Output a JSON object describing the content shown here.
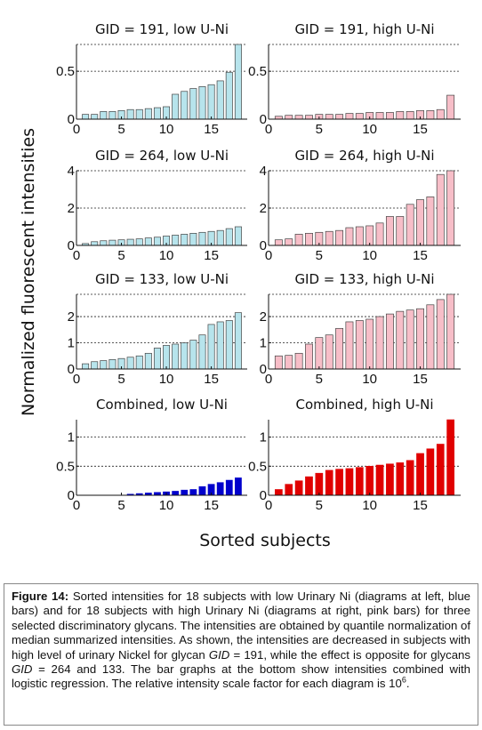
{
  "figure": {
    "ylabel": "Normalized fluorescent intensities",
    "xlabel": "Sorted subjects"
  },
  "colors": {
    "low_panel_bar": "#b7e4ec",
    "high_panel_bar": "#f7bec8",
    "combined_low_bar": "#0000cc",
    "combined_high_bar": "#e00000",
    "bar_edge": "#444444"
  },
  "chart_data": [
    {
      "type": "bar",
      "title": "GID = 191, low U-Ni",
      "x": [
        1,
        2,
        3,
        4,
        5,
        6,
        7,
        8,
        9,
        10,
        11,
        12,
        13,
        14,
        15,
        16,
        17,
        18
      ],
      "values": [
        0.05,
        0.05,
        0.08,
        0.08,
        0.09,
        0.1,
        0.1,
        0.11,
        0.12,
        0.13,
        0.26,
        0.29,
        0.32,
        0.34,
        0.36,
        0.4,
        0.49,
        0.78
      ],
      "xlim": [
        0,
        19
      ],
      "ylim": [
        0,
        0.78
      ],
      "xticks": [
        "0",
        "5",
        "10",
        "15"
      ],
      "yticks": [
        "0",
        "0.5"
      ],
      "ytick_values": [
        0,
        0.5
      ],
      "grid_y": [
        0.5
      ],
      "grid_top": true
    },
    {
      "type": "bar",
      "title": "GID = 191, high U-Ni",
      "x": [
        1,
        2,
        3,
        4,
        5,
        6,
        7,
        8,
        9,
        10,
        11,
        12,
        13,
        14,
        15,
        16,
        17,
        18
      ],
      "values": [
        0.03,
        0.04,
        0.04,
        0.04,
        0.05,
        0.05,
        0.05,
        0.06,
        0.06,
        0.07,
        0.07,
        0.07,
        0.08,
        0.08,
        0.09,
        0.09,
        0.1,
        0.25
      ],
      "xlim": [
        0,
        19
      ],
      "ylim": [
        0,
        0.78
      ],
      "xticks": [
        "0",
        "5",
        "10",
        "15"
      ],
      "yticks": [
        "0",
        "0.5"
      ],
      "ytick_values": [
        0,
        0.5
      ],
      "grid_y": [
        0.5
      ],
      "grid_top": true
    },
    {
      "type": "bar",
      "title": "GID = 264, low U-Ni",
      "x": [
        1,
        2,
        3,
        4,
        5,
        6,
        7,
        8,
        9,
        10,
        11,
        12,
        13,
        14,
        15,
        16,
        17,
        18
      ],
      "values": [
        0.1,
        0.2,
        0.25,
        0.28,
        0.3,
        0.33,
        0.35,
        0.4,
        0.44,
        0.5,
        0.55,
        0.6,
        0.65,
        0.7,
        0.75,
        0.8,
        0.9,
        1.0
      ],
      "xlim": [
        0,
        19
      ],
      "ylim": [
        0,
        4
      ],
      "xticks": [
        "0",
        "5",
        "10",
        "15"
      ],
      "yticks": [
        "0",
        "2",
        "4"
      ],
      "ytick_values": [
        0,
        2,
        4
      ],
      "grid_y": [
        2
      ],
      "grid_top": true
    },
    {
      "type": "bar",
      "title": "GID = 264, high U-Ni",
      "x": [
        1,
        2,
        3,
        4,
        5,
        6,
        7,
        8,
        9,
        10,
        11,
        12,
        13,
        14,
        15,
        16,
        17,
        18
      ],
      "values": [
        0.3,
        0.35,
        0.6,
        0.65,
        0.7,
        0.75,
        0.8,
        0.95,
        1.0,
        1.05,
        1.2,
        1.55,
        1.55,
        2.2,
        2.45,
        2.6,
        3.8,
        4.0
      ],
      "xlim": [
        0,
        19
      ],
      "ylim": [
        0,
        4
      ],
      "xticks": [
        "0",
        "5",
        "10",
        "15"
      ],
      "yticks": [
        "0",
        "2",
        "4"
      ],
      "ytick_values": [
        0,
        2,
        4
      ],
      "grid_y": [
        2
      ],
      "grid_top": true
    },
    {
      "type": "bar",
      "title": "GID = 133, low U-Ni",
      "x": [
        1,
        2,
        3,
        4,
        5,
        6,
        7,
        8,
        9,
        10,
        11,
        12,
        13,
        14,
        15,
        16,
        17,
        18
      ],
      "values": [
        0.2,
        0.28,
        0.32,
        0.36,
        0.4,
        0.45,
        0.5,
        0.6,
        0.8,
        0.9,
        0.95,
        1.0,
        1.1,
        1.3,
        1.7,
        1.8,
        1.85,
        2.15
      ],
      "xlim": [
        0,
        19
      ],
      "ylim": [
        0,
        2.85
      ],
      "xticks": [
        "0",
        "5",
        "10",
        "15"
      ],
      "yticks": [
        "0",
        "1",
        "2"
      ],
      "ytick_values": [
        0,
        1,
        2
      ],
      "grid_y": [
        1,
        2
      ],
      "grid_top": true
    },
    {
      "type": "bar",
      "title": "GID = 133, high U-Ni",
      "x": [
        1,
        2,
        3,
        4,
        5,
        6,
        7,
        8,
        9,
        10,
        11,
        12,
        13,
        14,
        15,
        16,
        17,
        18
      ],
      "values": [
        0.5,
        0.52,
        0.6,
        0.95,
        1.2,
        1.3,
        1.55,
        1.8,
        1.85,
        1.9,
        2.0,
        2.1,
        2.2,
        2.25,
        2.3,
        2.45,
        2.65,
        2.85
      ],
      "xlim": [
        0,
        19
      ],
      "ylim": [
        0,
        2.85
      ],
      "xticks": [
        "0",
        "5",
        "10",
        "15"
      ],
      "yticks": [
        "0",
        "1",
        "2"
      ],
      "ytick_values": [
        0,
        1,
        2
      ],
      "grid_y": [
        1,
        2
      ],
      "grid_top": true
    },
    {
      "type": "bar",
      "title": "Combined, low U-Ni",
      "x": [
        1,
        2,
        3,
        4,
        5,
        6,
        7,
        8,
        9,
        10,
        11,
        12,
        13,
        14,
        15,
        16,
        17,
        18
      ],
      "values": [
        0,
        0,
        0,
        0,
        0,
        0.02,
        0.03,
        0.04,
        0.05,
        0.06,
        0.07,
        0.09,
        0.1,
        0.15,
        0.19,
        0.22,
        0.26,
        0.3
      ],
      "xlim": [
        0,
        19
      ],
      "ylim": [
        0,
        1.3
      ],
      "xticks": [
        "0",
        "5",
        "10",
        "15"
      ],
      "yticks": [
        "0",
        "0.5",
        "1"
      ],
      "ytick_values": [
        0,
        0.5,
        1
      ],
      "grid_y": [
        0.5,
        1
      ],
      "grid_top": false
    },
    {
      "type": "bar",
      "title": "Combined, high U-Ni",
      "x": [
        1,
        2,
        3,
        4,
        5,
        6,
        7,
        8,
        9,
        10,
        11,
        12,
        13,
        14,
        15,
        16,
        17,
        18
      ],
      "values": [
        0.1,
        0.19,
        0.25,
        0.32,
        0.38,
        0.43,
        0.45,
        0.46,
        0.48,
        0.5,
        0.52,
        0.54,
        0.56,
        0.6,
        0.72,
        0.8,
        0.88,
        1.3
      ],
      "xlim": [
        0,
        19
      ],
      "ylim": [
        0,
        1.3
      ],
      "xticks": [
        "0",
        "5",
        "10",
        "15"
      ],
      "yticks": [
        "0",
        "0.5",
        "1"
      ],
      "ytick_values": [
        0,
        0.5,
        1
      ],
      "grid_y": [
        0.5,
        1
      ],
      "grid_top": false
    }
  ],
  "caption": {
    "label": "Figure 14:",
    "part1": " Sorted intensities for 18 subjects with low Urinary Ni (diagrams at left, blue bars) and for 18 subjects with high Urinary Ni (diagrams at right, pink bars) for three selected discriminatory glycans. The intensities are obtained by quantile normalization of median summarized intensities. As shown, the intensities are decreased in subjects with high level of urinary Nickel for glycan ",
    "gid1": "GID",
    "part2": " = 191, while the effect is opposite for glycans ",
    "gid2": "GID",
    "part3": " = 264 and 133. The bar graphs at the bottom show intensities combined with logistic regression. The relative intensity scale factor for each diagram is 10",
    "exponent": "6",
    "part4": "."
  }
}
